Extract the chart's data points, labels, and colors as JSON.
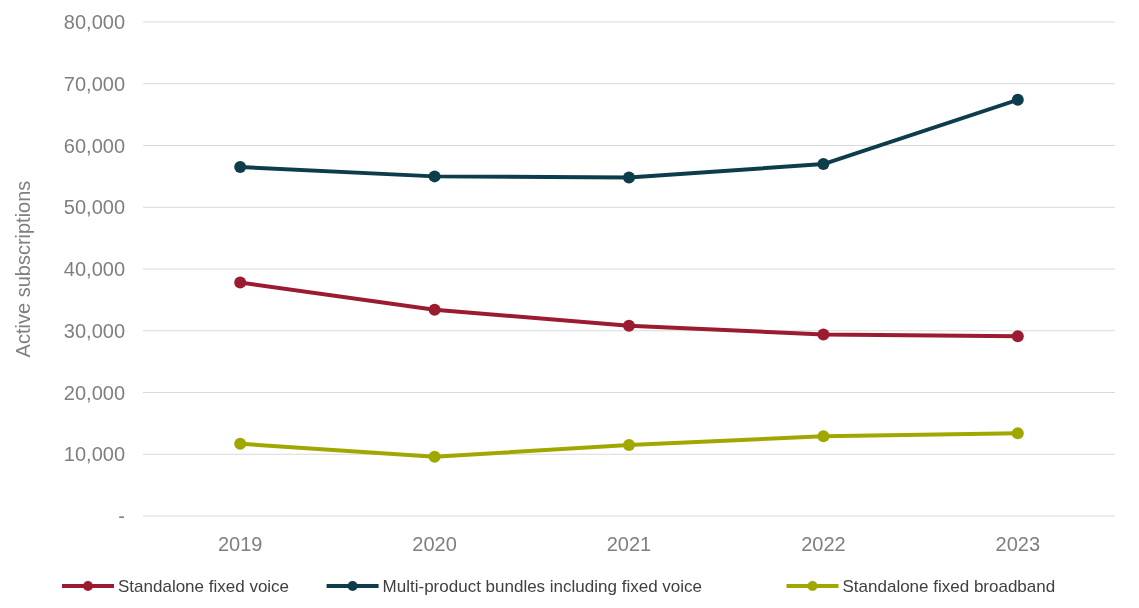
{
  "chart_data": {
    "type": "line",
    "ylabel": "Active subscriptions",
    "categories": [
      "2019",
      "2020",
      "2021",
      "2022",
      "2023"
    ],
    "series": [
      {
        "name": "Standalone fixed voice",
        "color": "#9b1b30",
        "values": [
          37800,
          33400,
          30800,
          29400,
          29100
        ]
      },
      {
        "name": "Multi-product bundles including fixed voice",
        "color": "#0d3d4a",
        "values": [
          56500,
          55000,
          54800,
          57000,
          67400
        ]
      },
      {
        "name": "Standalone fixed broadband",
        "color": "#a0a800",
        "values": [
          11700,
          9600,
          11500,
          12900,
          13400
        ]
      }
    ],
    "ylim": [
      0,
      80000
    ],
    "yticks": [
      {
        "value": 0,
        "label": "-"
      },
      {
        "value": 10000,
        "label": "10,000"
      },
      {
        "value": 20000,
        "label": "20,000"
      },
      {
        "value": 30000,
        "label": "30,000"
      },
      {
        "value": 40000,
        "label": "40,000"
      },
      {
        "value": 50000,
        "label": "50,000"
      },
      {
        "value": 60000,
        "label": "60,000"
      },
      {
        "value": 70000,
        "label": "70,000"
      },
      {
        "value": 80000,
        "label": "80,000"
      }
    ],
    "grid": "y",
    "legend": "bottom",
    "marker": "circle",
    "line_style": "solid"
  }
}
